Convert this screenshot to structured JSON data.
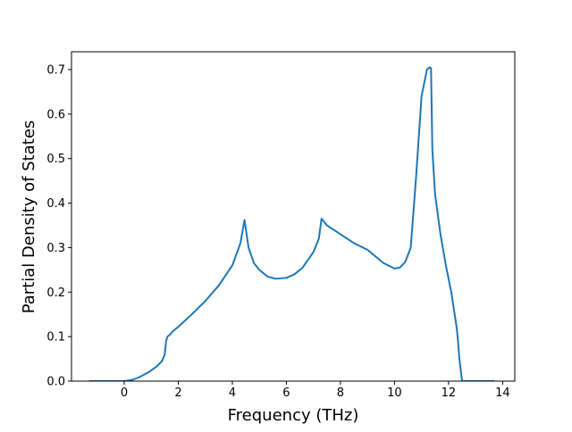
{
  "chart_data": {
    "type": "line",
    "title": "",
    "xlabel": "Frequency (THz)",
    "ylabel": "Partial Density of States",
    "xlim": [
      -1.95,
      14.45
    ],
    "ylim": [
      0.0,
      0.74
    ],
    "x_ticks": [
      0,
      2,
      4,
      6,
      8,
      10,
      12,
      14
    ],
    "y_ticks": [
      0.0,
      0.1,
      0.2,
      0.3,
      0.4,
      0.5,
      0.6,
      0.7
    ],
    "x_tick_labels": [
      "0",
      "2",
      "4",
      "6",
      "8",
      "10",
      "12",
      "14"
    ],
    "y_tick_labels": [
      "0.0",
      "0.1",
      "0.2",
      "0.3",
      "0.4",
      "0.5",
      "0.6",
      "0.7"
    ],
    "grid": false,
    "legend": "none",
    "series": [
      {
        "color": "#1f77b4",
        "x": [
          -1.3,
          -0.8,
          -0.3,
          0.0,
          0.3,
          0.6,
          0.9,
          1.2,
          1.4,
          1.5,
          1.55,
          1.6,
          1.7,
          1.8,
          2.0,
          2.5,
          3.0,
          3.5,
          4.0,
          4.3,
          4.45,
          4.6,
          4.8,
          5.0,
          5.3,
          5.6,
          6.0,
          6.3,
          6.6,
          7.0,
          7.2,
          7.3,
          7.5,
          8.0,
          8.5,
          9.0,
          9.3,
          9.6,
          9.9,
          10.0,
          10.2,
          10.4,
          10.6,
          10.8,
          11.0,
          11.2,
          11.3,
          11.35,
          11.4,
          11.5,
          11.7,
          11.9,
          12.1,
          12.2,
          12.3,
          12.35,
          12.4,
          12.5,
          13.0,
          13.7
        ],
        "y": [
          0.0,
          0.0,
          0.0,
          0.0,
          0.003,
          0.01,
          0.02,
          0.033,
          0.045,
          0.06,
          0.09,
          0.1,
          0.105,
          0.112,
          0.122,
          0.15,
          0.18,
          0.215,
          0.26,
          0.31,
          0.362,
          0.3,
          0.265,
          0.25,
          0.235,
          0.23,
          0.232,
          0.24,
          0.255,
          0.29,
          0.32,
          0.365,
          0.35,
          0.33,
          0.31,
          0.295,
          0.28,
          0.265,
          0.256,
          0.253,
          0.255,
          0.268,
          0.3,
          0.46,
          0.64,
          0.7,
          0.705,
          0.703,
          0.52,
          0.42,
          0.33,
          0.26,
          0.2,
          0.16,
          0.12,
          0.09,
          0.05,
          0.0,
          0.0,
          0.0
        ]
      }
    ]
  }
}
